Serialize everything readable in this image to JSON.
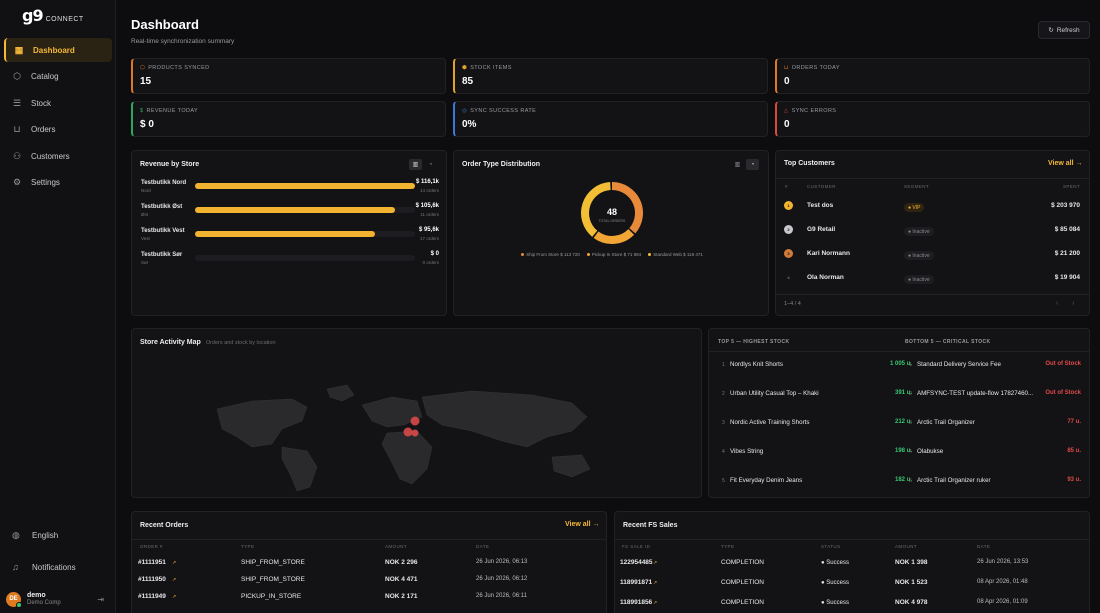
{
  "brand": {
    "logo": "g9",
    "logo_suffix": "CONNECT"
  },
  "sidebar": {
    "items": [
      {
        "label": "Dashboard",
        "icon": "dashboard-icon",
        "active": true
      },
      {
        "label": "Catalog",
        "icon": "box-icon"
      },
      {
        "label": "Stock",
        "icon": "layers-icon"
      },
      {
        "label": "Orders",
        "icon": "cart-icon"
      },
      {
        "label": "Customers",
        "icon": "users-icon"
      },
      {
        "label": "Settings",
        "icon": "gear-icon"
      }
    ],
    "language": "English",
    "notifications": "Notifications",
    "user": {
      "initials": "DE",
      "name": "demo",
      "company": "Demo Comp"
    }
  },
  "header": {
    "title": "Dashboard",
    "subtitle": "Real-time synchronization summary",
    "refresh": "Refresh"
  },
  "kpis": [
    {
      "label": "PRODUCTS SYNCED",
      "value": "15",
      "color": "#e0762a"
    },
    {
      "label": "STOCK ITEMS",
      "value": "85",
      "color": "#e0a22a"
    },
    {
      "label": "ORDERS TODAY",
      "value": "0",
      "color": "#e0762a"
    },
    {
      "label": "REVENUE TODAY",
      "value": "$ 0",
      "color": "#2aa860"
    },
    {
      "label": "SYNC SUCCESS RATE",
      "value": "0%",
      "color": "#3a78d8"
    },
    {
      "label": "SYNC ERRORS",
      "value": "0",
      "color": "#d84a3a"
    }
  ],
  "revenue": {
    "title": "Revenue by Store",
    "stores": [
      {
        "name": "Testbutikk Nord",
        "region": "Nord",
        "value": "$ 116,1k",
        "orders": "14 orders",
        "fraction": 1.0
      },
      {
        "name": "Testbutikk Øst",
        "region": "Øst",
        "value": "$ 105,6k",
        "orders": "11 orders",
        "fraction": 0.91
      },
      {
        "name": "Testbutikk Vest",
        "region": "Vest",
        "value": "$ 95,6k",
        "orders": "17 orders",
        "fraction": 0.82
      },
      {
        "name": "Testbutikk Sør",
        "region": "Sør",
        "value": "$ 0",
        "orders": "0 orders",
        "fraction": 0.0
      }
    ]
  },
  "chart_data": {
    "type": "pie",
    "title": "Order Type Distribution",
    "center_value": "48",
    "center_label": "TOTAL ORDERS",
    "slices": [
      {
        "name": "Ship From Store",
        "display": "$ 113 720",
        "value": 113720,
        "color": "#e88a3a"
      },
      {
        "name": "Pickup In Store",
        "display": "$ 71 984",
        "value": 71984,
        "color": "#f0a535"
      },
      {
        "name": "Standard Web",
        "display": "$ 118 471",
        "value": 118471,
        "color": "#f2be35"
      }
    ]
  },
  "top_customers": {
    "title": "Top Customers",
    "view_all": "View all →",
    "headers": {
      "rank": "#",
      "customer": "CUSTOMER",
      "segment": "SEGMENT",
      "spent": "SPENT"
    },
    "rows": [
      {
        "rank": "1",
        "name": "Test dos",
        "segment": "● VIP",
        "spent": "$ 203 970",
        "medal": "#f2b330",
        "seg_color": "#f5b83a",
        "seg_bg": "#2e2410"
      },
      {
        "rank": "2",
        "name": "G9 Retail",
        "segment": "● Inactive",
        "spent": "$ 85 084",
        "medal": "#c7c7cc",
        "seg_color": "#8a8a8e",
        "seg_bg": "#1e1e22"
      },
      {
        "rank": "3",
        "name": "Kari Normann",
        "segment": "● Inactive",
        "spent": "$ 21 200",
        "medal": "#d07a3a",
        "seg_color": "#8a8a8e",
        "seg_bg": "#1e1e22"
      },
      {
        "rank": "4",
        "name": "Ola Norman",
        "segment": "● Inactive",
        "spent": "$ 19 904",
        "medal": "",
        "seg_color": "#8a8a8e",
        "seg_bg": "#1e1e22"
      }
    ],
    "pagination": "1–4 / 4"
  },
  "map": {
    "title": "Store Activity Map",
    "subtitle": "Orders and stock by location"
  },
  "stock": {
    "top_title": "TOP 5 — HIGHEST STOCK",
    "bottom_title": "BOTTOM 5 — CRITICAL STOCK",
    "top": [
      {
        "rank": "1",
        "name": "Nordlys Knit Shorts",
        "qty": "1 005 u."
      },
      {
        "rank": "2",
        "name": "Urban Utility Casual Top – Khaki",
        "qty": "391 u."
      },
      {
        "rank": "3",
        "name": "Nordic Active Training Shorts",
        "qty": "212 u."
      },
      {
        "rank": "4",
        "name": "Vibes String",
        "qty": "198 u."
      },
      {
        "rank": "5",
        "name": "Fit Everyday Denim Jeans",
        "qty": "182 u."
      }
    ],
    "bottom": [
      {
        "rank": "1",
        "name": "Standard Delivery Service Fee",
        "qty": "Out of Stock"
      },
      {
        "rank": "2",
        "name": "AMFSYNC-TEST update-flow 17827460...",
        "qty": "Out of Stock"
      },
      {
        "rank": "3",
        "name": "Arctic Trail Organizer",
        "qty": "77 u."
      },
      {
        "rank": "4",
        "name": "Olabukse",
        "qty": "85 u."
      },
      {
        "rank": "5",
        "name": "Arctic Trail Organizer ruker",
        "qty": "93 u."
      }
    ]
  },
  "recent_orders": {
    "title": "Recent Orders",
    "view_all": "View all →",
    "headers": {
      "order": "ORDER #",
      "type": "TYPE",
      "amount": "AMOUNT",
      "date": "DATE"
    },
    "rows": [
      {
        "order": "#1111951",
        "type": "SHIP_FROM_STORE",
        "amount": "NOK 2 296",
        "date": "26 Jun 2026, 06:13"
      },
      {
        "order": "#1111950",
        "type": "SHIP_FROM_STORE",
        "amount": "NOK 4 471",
        "date": "26 Jun 2026, 06:12"
      },
      {
        "order": "#1111949",
        "type": "PICKUP_IN_STORE",
        "amount": "NOK 2 171",
        "date": "26 Jun 2026, 06:11"
      }
    ]
  },
  "recent_fs": {
    "title": "Recent FS Sales",
    "headers": {
      "id": "FS SALE ID",
      "type": "TYPE",
      "status": "STATUS",
      "amount": "AMOUNT",
      "date": "DATE"
    },
    "rows": [
      {
        "id": "122954485",
        "type": "COMPLETION",
        "status": "● Success",
        "amount": "NOK 1 398",
        "date": "26 Jun 2026, 13:53"
      },
      {
        "id": "118991871",
        "type": "COMPLETION",
        "status": "● Success",
        "amount": "NOK 1 523",
        "date": "08 Apr 2026, 01:48"
      },
      {
        "id": "118991856",
        "type": "COMPLETION",
        "status": "● Success",
        "amount": "NOK 4 978",
        "date": "08 Apr 2026, 01:09"
      }
    ]
  }
}
